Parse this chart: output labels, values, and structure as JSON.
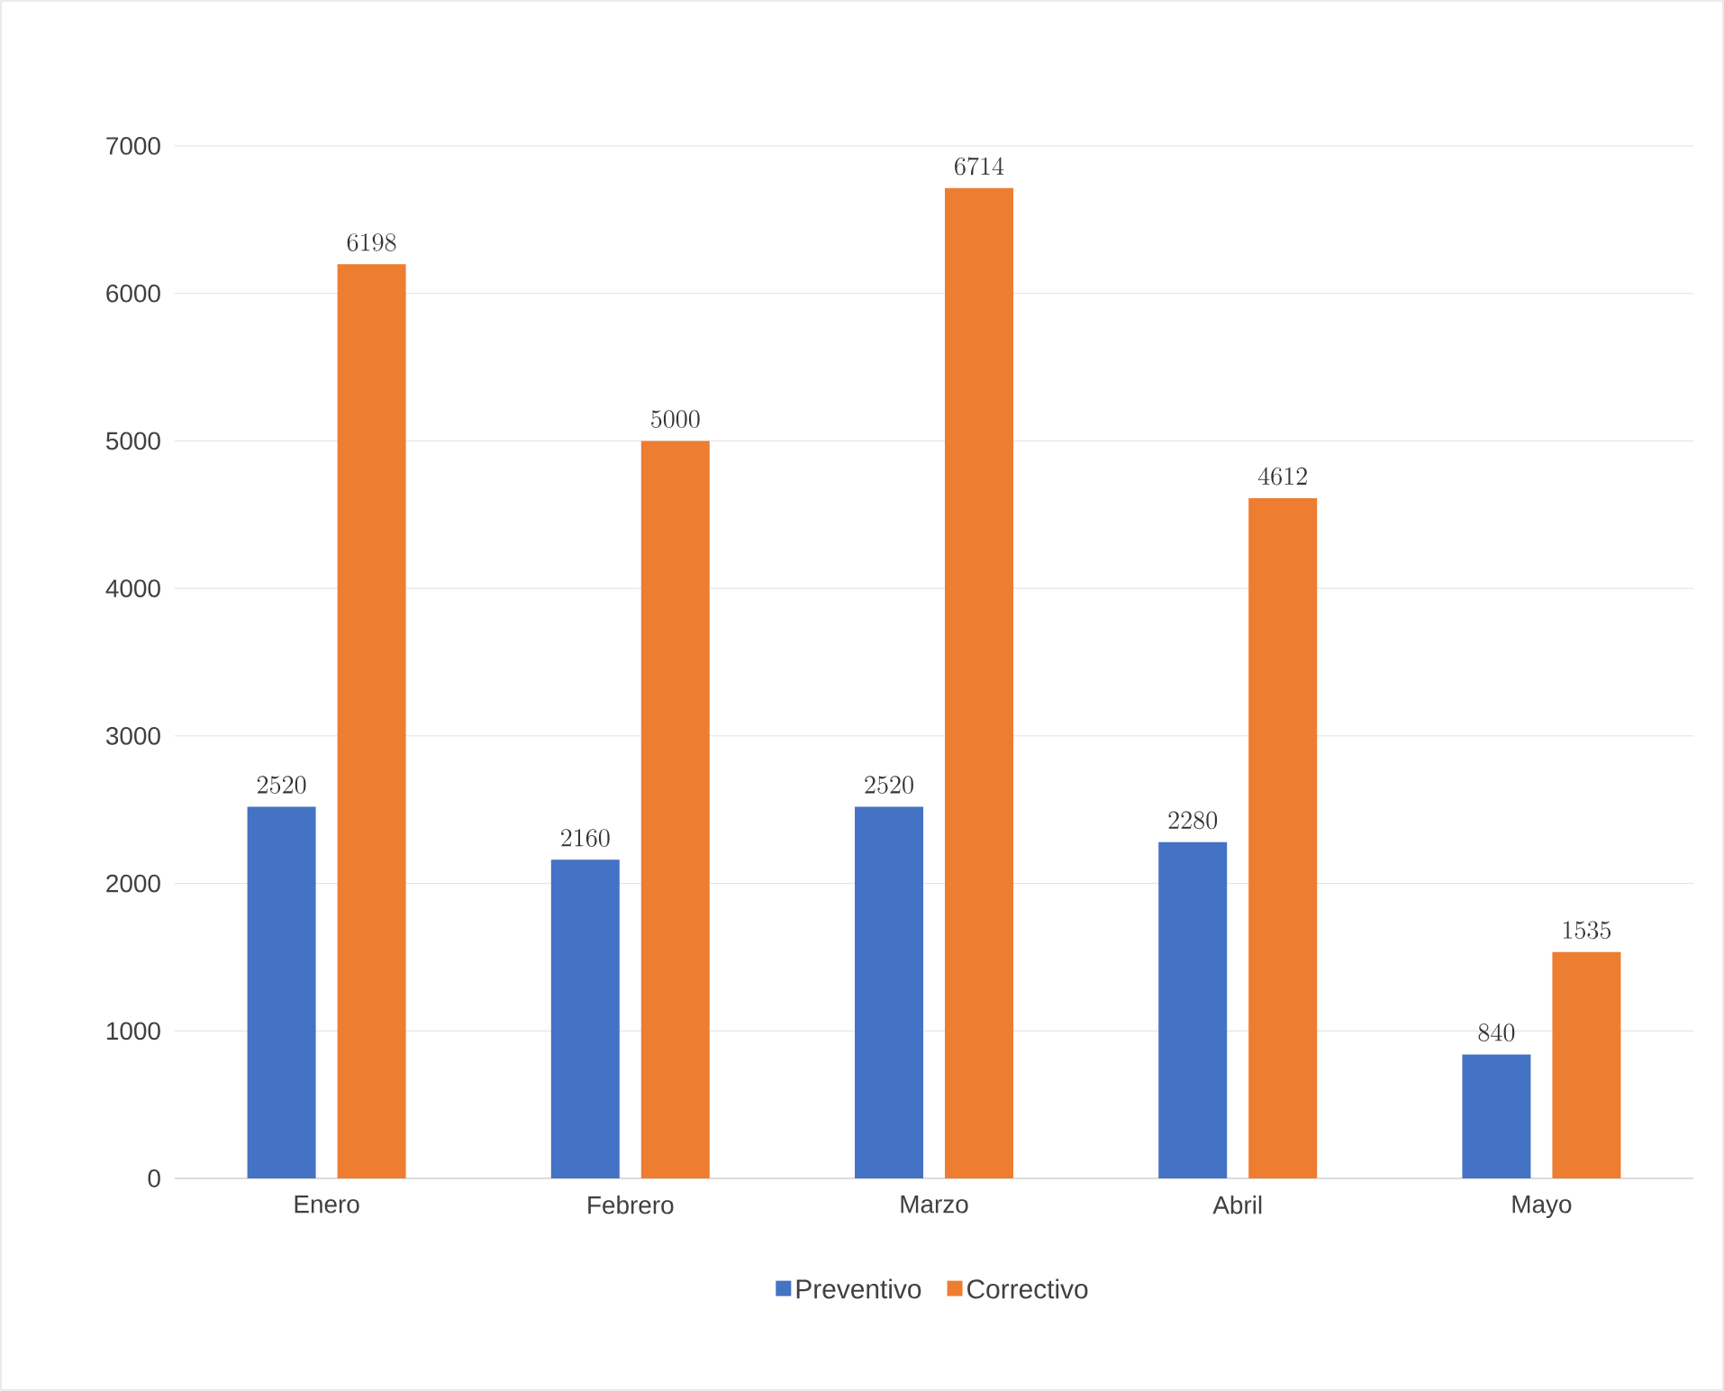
{
  "chart_data": {
    "type": "bar",
    "categories": [
      "Enero",
      "Febrero",
      "Marzo",
      "Abril",
      "Mayo"
    ],
    "series": [
      {
        "name": "Preventivo",
        "color": "#4472c4",
        "values": [
          2520,
          2160,
          2520,
          2280,
          840
        ]
      },
      {
        "name": "Correctivo",
        "color": "#ed7d31",
        "values": [
          6198,
          5000,
          6714,
          4612,
          1535
        ]
      }
    ],
    "ylim": [
      0,
      7000
    ],
    "yticks": [
      0,
      1000,
      2000,
      3000,
      4000,
      5000,
      6000,
      7000
    ],
    "grid": "y",
    "legend": "bottom",
    "data_labels": true
  }
}
